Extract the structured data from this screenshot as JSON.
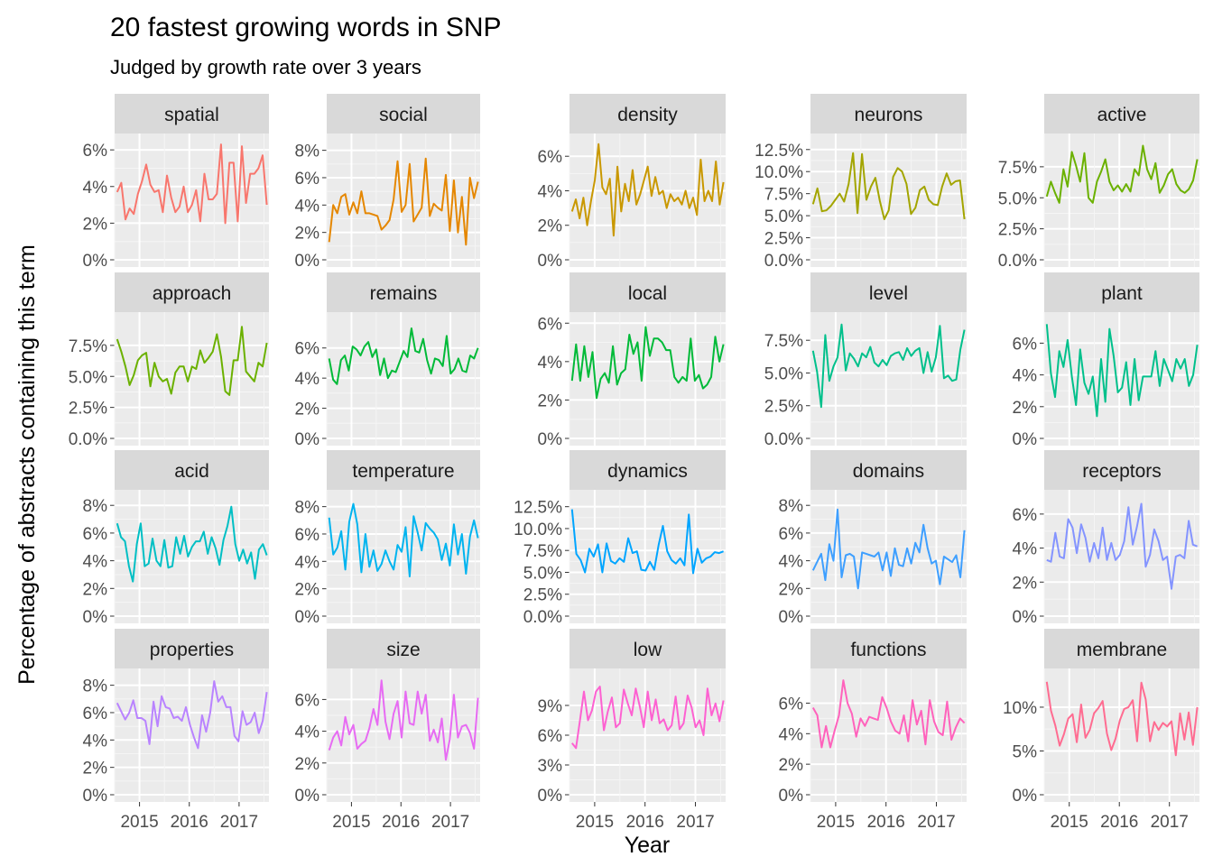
{
  "title": "20 fastest growing words in SNP",
  "subtitle": "Judged by growth rate over 3 years",
  "xlabel": "Year",
  "ylabel": "Percentage of abstracts containing this term",
  "chart_data": {
    "type": "line",
    "x_ticks": [
      "2015",
      "2016",
      "2017"
    ],
    "x_axis_shown_on_bottom_row_only": true,
    "facets": [
      {
        "term": "spatial",
        "color": "#F8766D",
        "y_ticks": [
          "0%",
          "2%",
          "4%",
          "6%"
        ],
        "ylim": [
          0,
          6.5
        ],
        "values": [
          3.7,
          4.2,
          2.2,
          2.8,
          2.5,
          3.6,
          4.3,
          5.2,
          4.1,
          3.7,
          3.8,
          2.6,
          4.6,
          3.4,
          2.6,
          2.9,
          4.0,
          2.6,
          3.0,
          3.8,
          2.1,
          4.7,
          3.3,
          3.3,
          3.6,
          6.3,
          2.0,
          5.3,
          5.3,
          2.1,
          6.2,
          3.1,
          4.7,
          4.7,
          5.0,
          5.7,
          3.0
        ]
      },
      {
        "term": "social",
        "color": "#E58700",
        "y_ticks": [
          "0%",
          "2%",
          "4%",
          "6%",
          "8%"
        ],
        "ylim": [
          0,
          8.7
        ],
        "values": [
          1.3,
          4.0,
          3.4,
          4.6,
          4.8,
          3.3,
          4.2,
          3.4,
          5.0,
          3.4,
          3.4,
          3.3,
          3.2,
          2.2,
          2.5,
          2.9,
          4.4,
          7.2,
          3.5,
          4.0,
          7.0,
          2.8,
          3.3,
          3.8,
          7.4,
          3.2,
          4.1,
          3.8,
          3.6,
          6.2,
          2.1,
          5.8,
          2.0,
          4.6,
          1.1,
          6.0,
          4.5,
          5.7
        ]
      },
      {
        "term": "density",
        "color": "#C99800",
        "y_ticks": [
          "0%",
          "2%",
          "4%",
          "6%"
        ],
        "ylim": [
          0,
          6.9
        ],
        "values": [
          2.8,
          3.5,
          2.4,
          3.6,
          2.0,
          3.4,
          4.6,
          6.7,
          4.2,
          3.8,
          4.7,
          1.4,
          5.4,
          2.8,
          4.4,
          3.4,
          5.2,
          3.2,
          3.8,
          4.6,
          5.4,
          3.7,
          4.8,
          3.8,
          4.0,
          3.0,
          3.8,
          3.4,
          3.6,
          3.2,
          4.0,
          3.0,
          3.6,
          2.6,
          5.8,
          3.4,
          4.0,
          3.4,
          5.7,
          3.2,
          4.5
        ]
      },
      {
        "term": "neurons",
        "color": "#A3A500",
        "y_ticks": [
          "0.0%",
          "2.5%",
          "5.0%",
          "7.5%",
          "10.0%",
          "12.5%"
        ],
        "ylim": [
          0,
          13.5
        ],
        "values": [
          6.3,
          8.1,
          5.5,
          5.6,
          6.1,
          6.8,
          7.5,
          6.6,
          8.6,
          12.1,
          5.3,
          12.0,
          6.8,
          8.3,
          9.3,
          6.7,
          4.6,
          5.6,
          9.4,
          10.4,
          10.0,
          8.6,
          5.2,
          5.9,
          7.9,
          8.3,
          6.8,
          6.3,
          6.2,
          8.3,
          9.8,
          8.5,
          8.9,
          9.0,
          4.6
        ]
      },
      {
        "term": "active",
        "color": "#6BB100",
        "y_ticks": [
          "0.0%",
          "2.5%",
          "5.0%",
          "7.5%"
        ],
        "ylim": [
          0,
          9.6
        ],
        "values": [
          5.1,
          6.3,
          5.4,
          4.6,
          7.3,
          5.9,
          8.7,
          7.6,
          6.3,
          8.6,
          5.0,
          4.6,
          6.3,
          7.1,
          8.1,
          6.3,
          5.6,
          6.0,
          5.5,
          6.1,
          5.5,
          7.3,
          6.8,
          9.2,
          7.3,
          6.5,
          7.8,
          5.4,
          6.0,
          6.9,
          7.3,
          6.1,
          5.6,
          5.4,
          5.7,
          6.4,
          8.1
        ]
      },
      {
        "term": "approach",
        "color": "#6BB100",
        "y_ticks": [
          "0.0%",
          "2.5%",
          "5.0%",
          "7.5%"
        ],
        "ylim": [
          0,
          9.6
        ],
        "values": [
          8.0,
          7.0,
          5.8,
          4.3,
          5.1,
          6.3,
          6.7,
          6.9,
          4.2,
          6.1,
          5.0,
          4.6,
          4.8,
          3.6,
          5.3,
          5.8,
          5.8,
          4.6,
          5.8,
          5.6,
          7.1,
          6.1,
          6.5,
          7.0,
          8.4,
          6.6,
          3.8,
          3.5,
          6.3,
          6.3,
          9.0,
          5.4,
          5.0,
          4.6,
          6.1,
          5.8,
          7.7
        ]
      },
      {
        "term": "remains",
        "color": "#00BA38",
        "y_ticks": [
          "0%",
          "2%",
          "4%",
          "6%"
        ],
        "ylim": [
          0,
          7.9
        ],
        "values": [
          5.3,
          3.9,
          3.6,
          5.2,
          5.5,
          4.5,
          6.1,
          5.9,
          5.5,
          6.1,
          6.4,
          5.4,
          5.9,
          4.2,
          5.3,
          4.0,
          4.5,
          4.4,
          5.1,
          5.8,
          5.4,
          7.3,
          5.8,
          5.7,
          6.6,
          5.2,
          4.3,
          5.3,
          5.2,
          4.8,
          6.8,
          4.3,
          4.6,
          5.3,
          4.5,
          4.4,
          5.5,
          5.3,
          6.0
        ]
      },
      {
        "term": "local",
        "color": "#00BA38",
        "y_ticks": [
          "0%",
          "2%",
          "4%",
          "6%"
        ],
        "ylim": [
          0,
          6.2
        ],
        "values": [
          3.0,
          4.9,
          3.0,
          4.8,
          3.2,
          4.5,
          2.1,
          3.1,
          3.4,
          2.9,
          4.8,
          2.8,
          3.4,
          3.6,
          5.4,
          4.4,
          5.0,
          3.0,
          5.8,
          4.3,
          5.2,
          5.2,
          5.0,
          4.6,
          4.6,
          3.2,
          2.9,
          3.2,
          3.0,
          5.2,
          3.0,
          3.3,
          2.6,
          2.8,
          3.2,
          5.3,
          4.0,
          4.9
        ]
      },
      {
        "term": "level",
        "color": "#00C08B",
        "y_ticks": [
          "0.0%",
          "2.5%",
          "5.0%",
          "7.5%"
        ],
        "ylim": [
          0,
          9.1
        ],
        "values": [
          6.7,
          5.1,
          2.4,
          7.9,
          4.4,
          5.5,
          6.2,
          8.7,
          5.2,
          6.5,
          6.1,
          5.5,
          6.5,
          6.2,
          7.0,
          5.8,
          5.5,
          6.0,
          5.6,
          6.3,
          6.5,
          6.6,
          6.0,
          6.9,
          6.3,
          6.7,
          6.9,
          5.0,
          6.6,
          5.1,
          6.2,
          8.6,
          4.6,
          4.8,
          4.4,
          4.5,
          6.8,
          8.3
        ]
      },
      {
        "term": "plant",
        "color": "#00C08B",
        "y_ticks": [
          "0%",
          "2%",
          "4%",
          "6%"
        ],
        "ylim": [
          0,
          7.5
        ],
        "values": [
          7.2,
          4.1,
          2.6,
          5.5,
          4.5,
          6.2,
          3.9,
          2.1,
          5.6,
          3.5,
          2.8,
          3.9,
          1.4,
          5.0,
          2.3,
          6.9,
          5.2,
          2.9,
          3.2,
          4.8,
          2.1,
          5.0,
          2.4,
          3.9,
          3.9,
          3.9,
          5.5,
          3.3,
          5.0,
          4.3,
          3.6,
          5.0,
          4.4,
          5.0,
          3.3,
          4.0,
          5.9
        ]
      },
      {
        "term": "acid",
        "color": "#00BFC4",
        "y_ticks": [
          "0%",
          "2%",
          "4%",
          "6%",
          "8%"
        ],
        "ylim": [
          0,
          8.6
        ],
        "values": [
          6.7,
          5.7,
          5.4,
          3.6,
          2.5,
          5.2,
          6.7,
          3.6,
          3.8,
          5.6,
          4.0,
          3.6,
          5.5,
          3.5,
          3.6,
          5.7,
          4.5,
          5.8,
          4.3,
          5.0,
          5.4,
          5.4,
          6.1,
          4.5,
          5.7,
          4.9,
          3.7,
          5.5,
          6.5,
          7.9,
          5.2,
          4.0,
          4.8,
          3.8,
          4.6,
          2.7,
          4.8,
          5.2,
          4.4
        ]
      },
      {
        "term": "temperature",
        "color": "#00B4EF",
        "y_ticks": [
          "0%",
          "2%",
          "4%",
          "6%",
          "8%"
        ],
        "ylim": [
          0,
          8.7
        ],
        "values": [
          7.2,
          4.5,
          5.0,
          6.2,
          3.4,
          6.9,
          8.2,
          6.7,
          3.2,
          6.0,
          3.6,
          4.8,
          3.3,
          3.8,
          4.8,
          4.0,
          3.4,
          5.2,
          4.7,
          6.5,
          2.9,
          7.3,
          6.1,
          4.8,
          6.8,
          6.4,
          6.1,
          5.6,
          4.1,
          5.3,
          3.7,
          6.7,
          4.5,
          6.0,
          3.1,
          5.8,
          7.0,
          5.7
        ]
      },
      {
        "term": "dynamics",
        "color": "#00A5FF",
        "y_ticks": [
          "0.0%",
          "2.5%",
          "5.0%",
          "7.5%",
          "10.0%",
          "12.5%"
        ],
        "ylim": [
          0,
          13.6
        ],
        "values": [
          12.2,
          7.1,
          6.4,
          5.0,
          7.7,
          6.8,
          8.2,
          5.0,
          8.3,
          6.3,
          6.0,
          6.6,
          6.2,
          8.9,
          7.2,
          7.4,
          5.3,
          5.2,
          6.2,
          5.3,
          8.1,
          10.3,
          7.4,
          6.4,
          6.0,
          6.6,
          5.8,
          11.6,
          4.9,
          7.7,
          6.1,
          6.6,
          6.8,
          7.3,
          7.2,
          7.4
        ]
      },
      {
        "term": "domains",
        "color": "#3E9FFF",
        "y_ticks": [
          "0%",
          "2%",
          "4%",
          "6%",
          "8%"
        ],
        "ylim": [
          0,
          8.6
        ],
        "values": [
          3.3,
          3.9,
          4.5,
          2.6,
          5.2,
          4.0,
          7.7,
          2.8,
          4.4,
          4.5,
          4.3,
          2.0,
          4.6,
          4.5,
          4.4,
          4.3,
          4.6,
          3.3,
          4.6,
          2.9,
          4.9,
          3.7,
          3.6,
          4.9,
          3.8,
          5.3,
          4.6,
          6.6,
          4.9,
          3.8,
          4.0,
          2.3,
          4.3,
          4.1,
          3.9,
          4.4,
          2.8,
          6.2
        ]
      },
      {
        "term": "receptors",
        "color": "#8494FF",
        "y_ticks": [
          "0%",
          "2%",
          "4%",
          "6%"
        ],
        "ylim": [
          0,
          7.0
        ],
        "values": [
          3.3,
          3.2,
          4.9,
          3.5,
          3.4,
          5.7,
          5.2,
          3.7,
          5.4,
          4.6,
          3.2,
          4.3,
          3.4,
          5.2,
          3.3,
          4.3,
          3.3,
          3.6,
          4.4,
          6.4,
          4.2,
          5.3,
          6.6,
          2.9,
          3.6,
          5.1,
          4.4,
          3.3,
          3.5,
          1.6,
          3.5,
          3.6,
          3.4,
          5.6,
          4.2,
          4.1
        ]
      },
      {
        "term": "properties",
        "color": "#B983FF",
        "y_ticks": [
          "0%",
          "2%",
          "4%",
          "6%",
          "8%"
        ],
        "ylim": [
          0,
          8.7
        ],
        "values": [
          6.7,
          6.1,
          5.5,
          6.0,
          6.9,
          5.6,
          5.6,
          5.4,
          3.7,
          6.8,
          5.0,
          7.2,
          6.4,
          6.3,
          5.6,
          5.7,
          5.4,
          6.4,
          5.1,
          4.2,
          3.4,
          5.8,
          4.6,
          6.0,
          8.3,
          6.8,
          7.2,
          6.4,
          6.4,
          4.3,
          3.9,
          6.1,
          5.1,
          5.3,
          6.0,
          4.5,
          5.4,
          7.5
        ]
      },
      {
        "term": "size",
        "color": "#E76BF3",
        "y_ticks": [
          "0%",
          "2%",
          "4%",
          "6%"
        ],
        "ylim": [
          0,
          7.5
        ],
        "values": [
          2.8,
          3.6,
          4.0,
          3.1,
          4.9,
          3.8,
          4.4,
          2.9,
          3.2,
          3.4,
          4.2,
          5.4,
          4.4,
          7.2,
          4.6,
          3.5,
          5.1,
          5.9,
          3.6,
          6.5,
          4.5,
          4.4,
          6.5,
          5.1,
          6.3,
          3.4,
          4.1,
          3.3,
          4.8,
          2.2,
          3.5,
          6.3,
          3.6,
          4.3,
          4.4,
          3.9,
          2.9,
          6.1
        ]
      },
      {
        "term": "low",
        "color": "#FD61D1",
        "y_ticks": [
          "0%",
          "3%",
          "6%",
          "9%"
        ],
        "ylim": [
          0,
          12.0
        ],
        "values": [
          5.2,
          4.7,
          7.5,
          10.4,
          7.5,
          8.5,
          10.4,
          10.9,
          6.5,
          8.4,
          9.8,
          6.8,
          7.2,
          10.6,
          9.2,
          8.0,
          10.7,
          8.9,
          6.8,
          10.4,
          7.5,
          9.6,
          7.2,
          7.6,
          6.5,
          7.0,
          9.9,
          6.6,
          7.2,
          10.0,
          8.8,
          6.8,
          7.5,
          6.0,
          10.7,
          8.0,
          9.2,
          7.4,
          9.5
        ]
      },
      {
        "term": "functions",
        "color": "#FF62BC",
        "y_ticks": [
          "0%",
          "2%",
          "4%",
          "6%"
        ],
        "ylim": [
          0,
          7.8
        ],
        "values": [
          5.7,
          5.2,
          3.1,
          4.5,
          3.1,
          4.2,
          5.2,
          7.5,
          6.0,
          5.3,
          3.8,
          5.0,
          4.5,
          5.1,
          5.0,
          4.9,
          6.4,
          5.7,
          4.8,
          4.2,
          4.0,
          5.2,
          3.5,
          6.2,
          4.6,
          5.5,
          3.3,
          6.2,
          4.8,
          4.1,
          3.9,
          6.1,
          3.6,
          4.4,
          5.0,
          4.7
        ]
      },
      {
        "term": "membrane",
        "color": "#FF6C91",
        "y_ticks": [
          "0%",
          "5%",
          "10%"
        ],
        "ylim": [
          0,
          13.6
        ],
        "values": [
          12.9,
          9.6,
          7.9,
          5.6,
          6.9,
          8.7,
          9.2,
          6.0,
          10.3,
          6.5,
          7.4,
          9.3,
          9.9,
          10.7,
          7.0,
          5.1,
          6.4,
          8.5,
          9.8,
          10.0,
          10.8,
          6.1,
          12.8,
          10.9,
          6.1,
          8.3,
          7.4,
          8.2,
          7.8,
          8.4,
          4.5,
          9.3,
          6.3,
          9.4,
          5.7,
          10.0
        ]
      }
    ]
  }
}
